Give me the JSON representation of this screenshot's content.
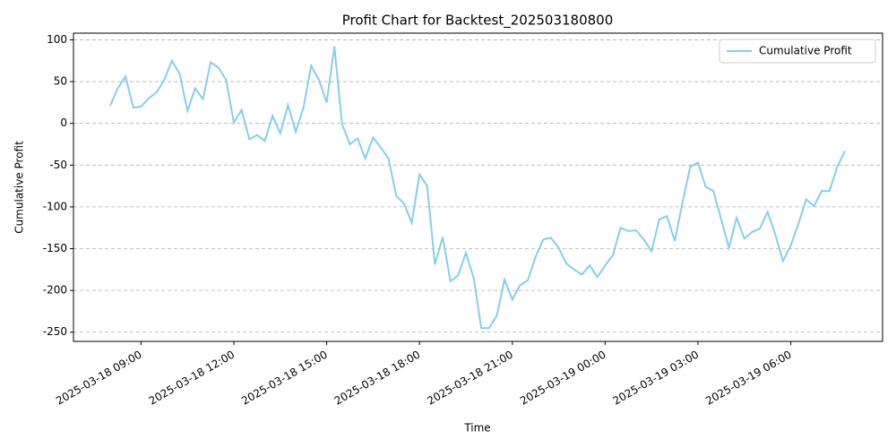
{
  "chart_data": {
    "type": "line",
    "title": "Profit Chart for Backtest_202503180800",
    "xlabel": "Time",
    "ylabel": "Cumulative Profit",
    "x": [
      "2025-03-18 08:00",
      "2025-03-18 08:15",
      "2025-03-18 08:30",
      "2025-03-18 08:45",
      "2025-03-18 09:00",
      "2025-03-18 09:15",
      "2025-03-18 09:30",
      "2025-03-18 09:45",
      "2025-03-18 10:00",
      "2025-03-18 10:15",
      "2025-03-18 10:30",
      "2025-03-18 10:45",
      "2025-03-18 11:00",
      "2025-03-18 11:15",
      "2025-03-18 11:30",
      "2025-03-18 11:45",
      "2025-03-18 12:00",
      "2025-03-18 12:15",
      "2025-03-18 12:30",
      "2025-03-18 12:45",
      "2025-03-18 13:00",
      "2025-03-18 13:15",
      "2025-03-18 13:30",
      "2025-03-18 13:45",
      "2025-03-18 14:00",
      "2025-03-18 14:15",
      "2025-03-18 14:30",
      "2025-03-18 14:45",
      "2025-03-18 15:00",
      "2025-03-18 15:15",
      "2025-03-18 15:30",
      "2025-03-18 15:45",
      "2025-03-18 16:00",
      "2025-03-18 16:15",
      "2025-03-18 16:30",
      "2025-03-18 16:45",
      "2025-03-18 17:00",
      "2025-03-18 17:15",
      "2025-03-18 17:30",
      "2025-03-18 17:45",
      "2025-03-18 18:00",
      "2025-03-18 18:15",
      "2025-03-18 18:30",
      "2025-03-18 18:45",
      "2025-03-18 19:00",
      "2025-03-18 19:15",
      "2025-03-18 19:30",
      "2025-03-18 19:45",
      "2025-03-18 20:00",
      "2025-03-18 20:15",
      "2025-03-18 20:30",
      "2025-03-18 20:45",
      "2025-03-18 21:00",
      "2025-03-18 21:15",
      "2025-03-18 21:30",
      "2025-03-18 21:45",
      "2025-03-18 22:00",
      "2025-03-18 22:15",
      "2025-03-18 22:30",
      "2025-03-18 22:45",
      "2025-03-18 23:00",
      "2025-03-18 23:15",
      "2025-03-18 23:30",
      "2025-03-18 23:45",
      "2025-03-19 00:00",
      "2025-03-19 00:15",
      "2025-03-19 00:30",
      "2025-03-19 00:45",
      "2025-03-19 01:00",
      "2025-03-19 01:15",
      "2025-03-19 01:30",
      "2025-03-19 01:45",
      "2025-03-19 02:00",
      "2025-03-19 02:15",
      "2025-03-19 02:30",
      "2025-03-19 02:45",
      "2025-03-19 03:00",
      "2025-03-19 03:15",
      "2025-03-19 03:30",
      "2025-03-19 03:45",
      "2025-03-19 04:00",
      "2025-03-19 04:15",
      "2025-03-19 04:30",
      "2025-03-19 04:45",
      "2025-03-19 05:00",
      "2025-03-19 05:15",
      "2025-03-19 05:30",
      "2025-03-19 05:45",
      "2025-03-19 06:00",
      "2025-03-19 06:15",
      "2025-03-19 06:30",
      "2025-03-19 06:45",
      "2025-03-19 07:00",
      "2025-03-19 07:15",
      "2025-03-19 07:30",
      "2025-03-19 07:45"
    ],
    "series": [
      {
        "name": "Cumulative Profit",
        "color": "#87ceeb",
        "values": [
          21,
          42,
          56,
          19,
          20,
          30,
          37,
          52,
          75,
          59,
          15,
          42,
          29,
          73,
          67,
          52,
          1,
          16,
          -19,
          -14,
          -21,
          9,
          -12,
          22,
          -10,
          19,
          69,
          52,
          25,
          92,
          -1,
          -25,
          -18,
          -42,
          -17,
          -29,
          -42,
          -87,
          -96,
          -119,
          -61,
          -75,
          -169,
          -136,
          -189,
          -182,
          -155,
          -185,
          -245,
          -245,
          -230,
          -187,
          -211,
          -194,
          -188,
          -160,
          -139,
          -137,
          -149,
          -168,
          -175,
          -181,
          -170,
          -184,
          -170,
          -158,
          -125,
          -129,
          -128,
          -139,
          -153,
          -115,
          -111,
          -141,
          -95,
          -52,
          -47,
          -76,
          -81,
          -115,
          -149,
          -113,
          -138,
          -130,
          -126,
          -106,
          -133,
          -165,
          -146,
          -120,
          -91,
          -99,
          -81,
          -81,
          -52,
          -33
        ]
      }
    ],
    "xlim": [
      "2025-03-18 06:49",
      "2025-03-19 08:58"
    ],
    "xticks": [
      "2025-03-18 09:00",
      "2025-03-18 12:00",
      "2025-03-18 15:00",
      "2025-03-18 18:00",
      "2025-03-18 21:00",
      "2025-03-19 00:00",
      "2025-03-19 03:00",
      "2025-03-19 06:00"
    ],
    "ylim": [
      -261,
      108
    ],
    "yticks": [
      -250,
      -200,
      -150,
      -100,
      -50,
      0,
      50,
      100
    ],
    "grid": "y",
    "legend": "upper right"
  }
}
